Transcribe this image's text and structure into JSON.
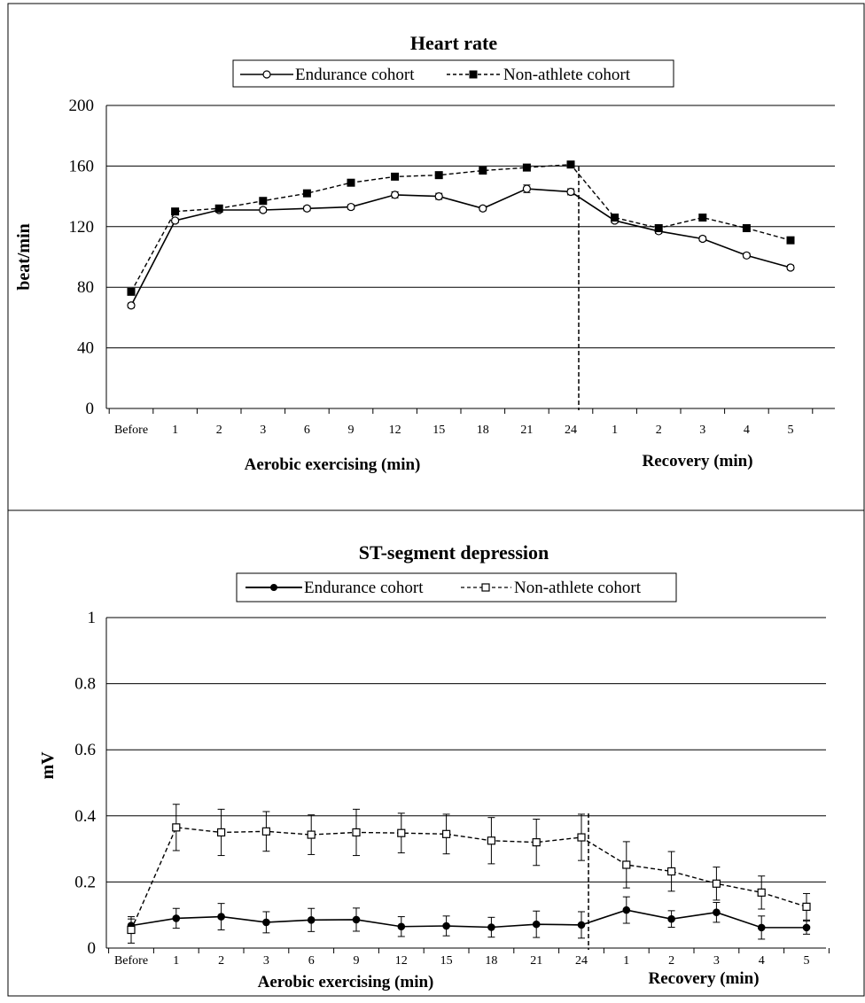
{
  "chart_data": [
    {
      "type": "line",
      "title": "Heart rate",
      "ylabel": "beat/min",
      "ylim": [
        0,
        200
      ],
      "yticks": [
        0,
        40,
        80,
        120,
        160,
        200
      ],
      "categories": [
        "Before",
        "1",
        "2",
        "3",
        "6",
        "9",
        "12",
        "15",
        "18",
        "21",
        "24",
        "1",
        "2",
        "3",
        "4",
        "5"
      ],
      "group_labels": [
        "Aerobic exercising (min)",
        "Recovery (min)"
      ],
      "grid": "horizontal",
      "legend_position": "top",
      "series": [
        {
          "name": "Endurance cohort",
          "line_style": "solid",
          "marker": "open-circle",
          "values": [
            68,
            124,
            131,
            131,
            132,
            133,
            141,
            140,
            132,
            145,
            143,
            124,
            117,
            112,
            101,
            93
          ],
          "errors": [
            1.5,
            1.5,
            1.5,
            1.5,
            1.5,
            1.5,
            2,
            2,
            1.5,
            2.5,
            2,
            1.5,
            1.5,
            1.5,
            1.5,
            1.5
          ]
        },
        {
          "name": "Non-athlete cohort",
          "line_style": "dashed",
          "marker": "filled-square",
          "values": [
            77,
            130,
            132,
            137,
            142,
            149,
            153,
            154,
            157,
            159,
            161,
            126,
            119,
            126,
            119,
            111
          ],
          "errors": [
            1.5,
            1.5,
            1.5,
            1.5,
            1.5,
            1.5,
            2,
            2,
            1.5,
            1.5,
            1.5,
            1.5,
            1.5,
            1.5,
            1.5,
            1.5
          ]
        }
      ]
    },
    {
      "type": "line",
      "title": "ST-segment depression",
      "ylabel": "mV",
      "ylim": [
        0,
        1
      ],
      "yticks": [
        "0",
        "0.2",
        "0.4",
        "0.6",
        "0.8",
        "1"
      ],
      "categories": [
        "Before",
        "1",
        "2",
        "3",
        "6",
        "9",
        "12",
        "15",
        "18",
        "21",
        "24",
        "1",
        "2",
        "3",
        "4",
        "5"
      ],
      "group_labels": [
        "Aerobic exercising (min)",
        "Recovery (min)"
      ],
      "grid": "horizontal",
      "legend_position": "top",
      "series": [
        {
          "name": "Endurance cohort",
          "line_style": "solid",
          "marker": "filled-circle",
          "values": [
            0.068,
            0.09,
            0.095,
            0.078,
            0.085,
            0.086,
            0.065,
            0.067,
            0.063,
            0.072,
            0.07,
            0.115,
            0.088,
            0.108,
            0.062,
            0.062
          ],
          "errors": [
            0.02,
            0.03,
            0.04,
            0.032,
            0.035,
            0.035,
            0.03,
            0.03,
            0.03,
            0.04,
            0.04,
            0.04,
            0.025,
            0.03,
            0.035,
            0.02
          ]
        },
        {
          "name": "Non-athlete cohort",
          "line_style": "dashed",
          "marker": "open-square",
          "values": [
            0.055,
            0.365,
            0.35,
            0.353,
            0.343,
            0.35,
            0.348,
            0.345,
            0.325,
            0.32,
            0.335,
            0.252,
            0.232,
            0.195,
            0.168,
            0.125
          ],
          "errors": [
            0.04,
            0.07,
            0.07,
            0.06,
            0.06,
            0.07,
            0.06,
            0.06,
            0.07,
            0.07,
            0.07,
            0.07,
            0.06,
            0.05,
            0.05,
            0.04
          ]
        }
      ]
    }
  ]
}
